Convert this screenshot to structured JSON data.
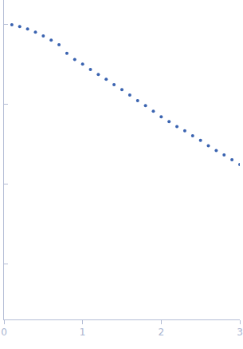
{
  "chart_data": {
    "type": "scatter",
    "log": "y",
    "color": "#3a63b0",
    "marker": "circle",
    "x": [
      0.1,
      0.2,
      0.3,
      0.4,
      0.5,
      0.6,
      0.7,
      0.8,
      0.9,
      1.0,
      1.1,
      1.2,
      1.3,
      1.4,
      1.5,
      1.6,
      1.7,
      1.8,
      1.9,
      2.0,
      2.1,
      2.2,
      2.3,
      2.4,
      2.5,
      2.6,
      2.7,
      2.8,
      2.9,
      3.0
    ],
    "values": [
      0.98,
      0.93,
      0.87,
      0.79,
      0.71,
      0.63,
      0.55,
      0.43,
      0.36,
      0.316,
      0.27,
      0.234,
      0.204,
      0.174,
      0.151,
      0.129,
      0.11,
      0.095,
      0.081,
      0.069,
      0.06,
      0.052,
      0.046,
      0.04,
      0.035,
      0.03,
      0.026,
      0.023,
      0.02,
      0.0174
    ],
    "xlim": [
      0,
      3
    ],
    "xticks": [
      0,
      1,
      2,
      3
    ],
    "ylim": [
      0.0002,
      2
    ],
    "yticks": [
      0.001,
      0.01,
      0.1,
      1
    ],
    "grid": false,
    "tick_labels": "x"
  }
}
